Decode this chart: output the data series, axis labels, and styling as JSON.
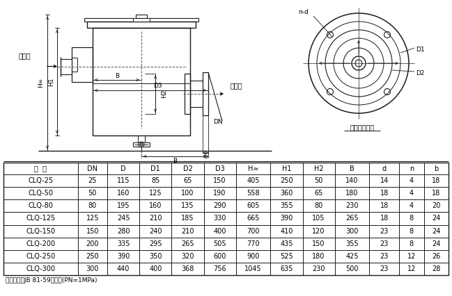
{
  "table_headers": [
    "型  号",
    "DN",
    "D",
    "D1",
    "D2",
    "D3",
    "H≈",
    "H1",
    "H2",
    "B",
    "d",
    "n",
    "b"
  ],
  "table_rows": [
    [
      "CLQ-25",
      "25",
      "115",
      "85",
      "65",
      "150",
      "405",
      "250",
      "50",
      "140",
      "14",
      "4",
      "18"
    ],
    [
      "CLQ-50",
      "50",
      "160",
      "125",
      "100",
      "190",
      "558",
      "360",
      "65",
      "180",
      "18",
      "4",
      "18"
    ],
    [
      "CLQ-80",
      "80",
      "195",
      "160",
      "135",
      "290",
      "605",
      "355",
      "80",
      "230",
      "18",
      "4",
      "20"
    ],
    [
      "CLQ-125",
      "125",
      "245",
      "210",
      "185",
      "330",
      "665",
      "390",
      "105",
      "265",
      "18",
      "8",
      "24"
    ],
    [
      "CLQ-150",
      "150",
      "280",
      "240",
      "210",
      "400",
      "700",
      "410",
      "120",
      "300",
      "23",
      "8",
      "24"
    ],
    [
      "CLQ-200",
      "200",
      "335",
      "295",
      "265",
      "505",
      "770",
      "435",
      "150",
      "355",
      "23",
      "8",
      "24"
    ],
    [
      "CLQ-250",
      "250",
      "390",
      "350",
      "320",
      "600",
      "900",
      "525",
      "180",
      "425",
      "23",
      "12",
      "26"
    ],
    [
      "CLQ-300",
      "300",
      "440",
      "400",
      "368",
      "756",
      "1045",
      "635",
      "230",
      "500",
      "23",
      "12",
      "28"
    ]
  ],
  "footnote": "连接法兰按JB 81-59的规定(PN=1MPa)",
  "label_inlet": "进油口",
  "label_outlet": "出油口",
  "label_flange": "进出油口法兰",
  "bg_color": "#ffffff",
  "line_color": "#1a1a1a",
  "font_size_table": 7.0,
  "font_size_label": 7.0,
  "col_widths_ratio": [
    1.5,
    0.6,
    0.65,
    0.65,
    0.65,
    0.65,
    0.7,
    0.65,
    0.65,
    0.7,
    0.6,
    0.5,
    0.5
  ]
}
